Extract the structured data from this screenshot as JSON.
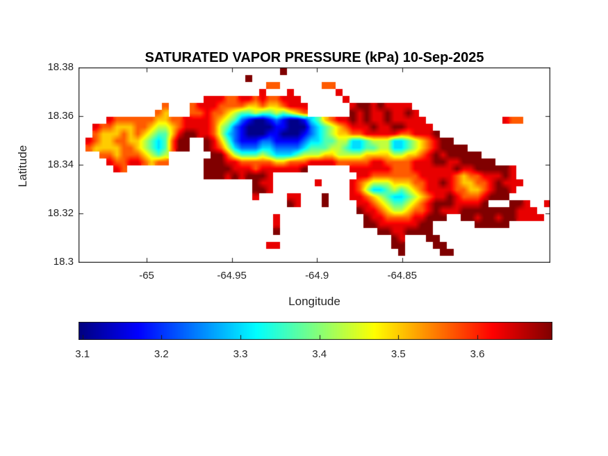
{
  "figure": {
    "background": "#ffffff"
  },
  "colors": {
    "axis_text": "#262626",
    "axis_line": "#1a1a1a",
    "title_text": "#000000",
    "background": "#ffffff"
  },
  "chart_data": {
    "type": "heatmap",
    "title": "SATURATED VAPOR PRESSURE (kPa) 10-Sep-2025",
    "date": "10-Sep-2025",
    "units": "kPa",
    "xlabel": "Longitude",
    "ylabel": "Latitude",
    "xlim": [
      -65.04,
      -64.763
    ],
    "ylim": [
      18.2997,
      18.38
    ],
    "xticks": {
      "values": [
        -65,
        -64.95,
        -64.9,
        -64.85
      ],
      "labels": [
        "-65",
        "-64.95",
        "-64.9",
        "-64.85"
      ]
    },
    "yticks": {
      "values": [
        18.38,
        18.36,
        18.34,
        18.32,
        18.3
      ],
      "labels": [
        "18.38",
        "18.36",
        "18.34",
        "18.32",
        "18.3"
      ]
    },
    "colormap": "jet",
    "color_axis": [
      3.095,
      3.695
    ],
    "colorbar": {
      "orientation": "horizontal",
      "position": "south",
      "range": [
        3.095,
        3.695
      ],
      "ticks": {
        "values": [
          3.1,
          3.2,
          3.3,
          3.4,
          3.5,
          3.6
        ],
        "labels": [
          "3.1",
          "3.2",
          "3.3",
          "3.4",
          "3.5",
          "3.6"
        ]
      }
    },
    "grid": {
      "note": "Island raster; '.' = water (transparent). Digits 0-9 map linearly to kPa values digit_min_value..digit_max_value.",
      "cols": 68,
      "rows": 28,
      "water_char": ".",
      "digit_min_value": 3.1,
      "digit_max_value": 3.7,
      "cells": [
        ".............................9......................................",
        "........................9...........................................",
        "...........................77......77...............................",
        "..........................8...8......8..............................",
        "..................88877887877888......8.............................",
        "............7...78887777667667888......899898888....................",
        "...........76...77877654454454567......9898898898...................",
        "....8777777667788887654210012100134678898988988888...........877....",
        "..8776667765567888875421000011000234567888988998888.................",
        "..76667676544689988753210001100012345667788888778889................",
        ".876677665434799..986421112211112334455334555334567899..............",
        ".766667765434799..98753222332222344455433445533456789999............",
        "...7767776545......997544454333455566555566665566789899999..........",
        "....877887677.....999887777766777888877777887777888998899999........",
        ".....87...........999988878888889......888888777888888988999998.....",
        "..................9998989998............8877777778888876778889 8.....",
        ".........................988......8....876555666778898766778 9888....",
        ".........................998...........87533454567888877667899 8.....",
        ".........................8....88...9...887654334567889877789 99......",
        "..............................98...9....8876544567899988889...998..8",
        "........................................988765567789888999999998 88..",
        "............................8............988777788999..99899899 8888.",
        "............................8............9988888899......99999......",
        "............................9..............99889999.................",
        ".............................................98...99................",
        "...........................88................99....99...............",
        "..............................................9.....99..............",
        "...................................................................."
      ]
    }
  }
}
